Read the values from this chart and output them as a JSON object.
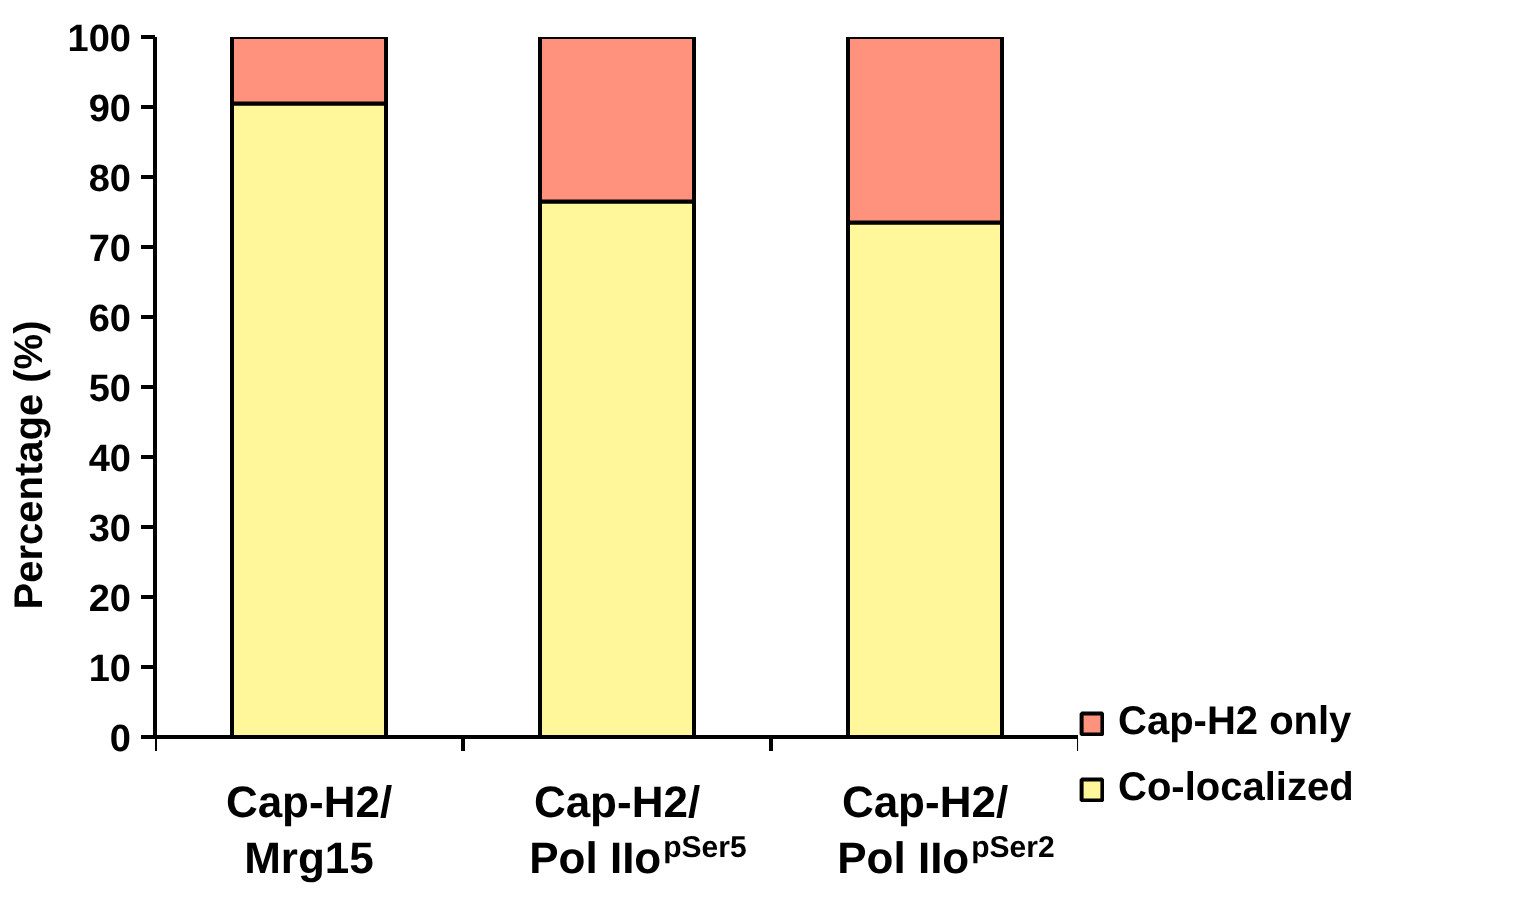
{
  "chart_data": {
    "type": "bar",
    "stacked": true,
    "ylabel": "Percentage (%)",
    "categories": [
      "Cap-H2/\nMrg15",
      "Cap-H2/\nPol IIo$^{pSer5}$",
      "Cap-H2/\nPol IIo$^{pSer2}$"
    ],
    "series": [
      {
        "name": "Co-localized",
        "color": "#fff799",
        "values": [
          90.5,
          76.5,
          73.5
        ]
      },
      {
        "name": "Cap-H2 only",
        "color": "#ff927c",
        "values": [
          9.5,
          23.5,
          26.5
        ]
      }
    ],
    "ylim": [
      0,
      100
    ],
    "yticks": [
      0,
      10,
      20,
      30,
      40,
      50,
      60,
      70,
      80,
      90,
      100
    ],
    "grid": false,
    "legend": "right"
  }
}
